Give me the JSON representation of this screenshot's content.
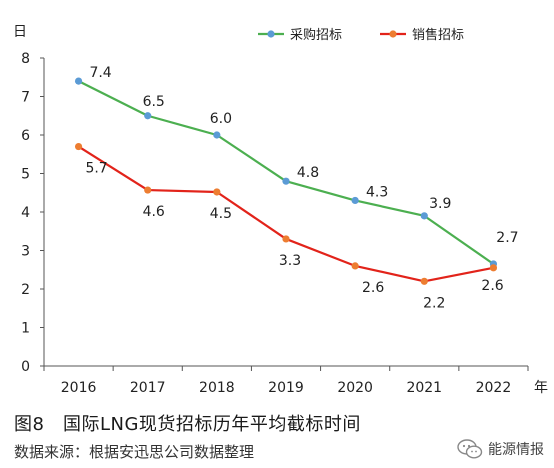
{
  "chart_data": {
    "type": "line",
    "ylabel": "日",
    "xlabel": "年",
    "x": [
      "2016",
      "2017",
      "2018",
      "2019",
      "2020",
      "2021",
      "2022"
    ],
    "ylim": [
      0,
      8
    ],
    "yticks": [
      "0",
      "1",
      "2",
      "3",
      "4",
      "5",
      "6",
      "7",
      "8"
    ],
    "grid": false,
    "legend_position": "top-right",
    "series": [
      {
        "name": "采购招标",
        "color": "#4caf50",
        "marker_color": "#5b9bd5",
        "values": [
          7.4,
          6.5,
          6.0,
          4.8,
          4.3,
          3.9,
          2.65
        ],
        "labels": [
          "7.4",
          "6.5",
          "6.0",
          "4.8",
          "4.3",
          "3.9",
          "2.7"
        ]
      },
      {
        "name": "销售招标",
        "color": "#e2231a",
        "marker_color": "#ed7d31",
        "values": [
          5.7,
          4.57,
          4.52,
          3.3,
          2.6,
          2.2,
          2.55
        ],
        "labels": [
          "5.7",
          "4.6",
          "4.5",
          "3.3",
          "2.6",
          "2.2",
          "2.6"
        ]
      }
    ]
  },
  "caption": "图8　国际LNG现货招标历年平均截标时间",
  "source": "数据来源：根据安迅思公司数据整理",
  "watermark": "能源情报"
}
